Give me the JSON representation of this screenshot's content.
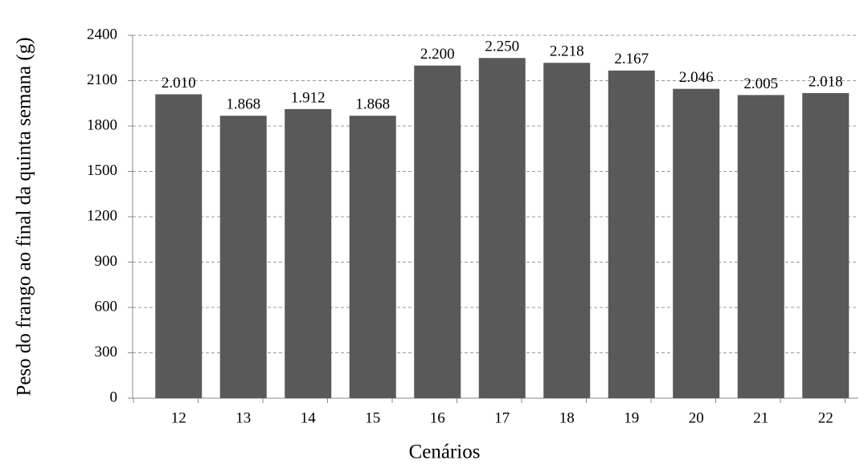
{
  "chart_data": {
    "type": "bar",
    "xlabel": "Cenários",
    "ylabel": "Peso do frango ao final da quinta semana (g)",
    "categories": [
      "12",
      "13",
      "14",
      "15",
      "16",
      "17",
      "18",
      "19",
      "20",
      "21",
      "22"
    ],
    "values": [
      2010,
      1868,
      1912,
      1868,
      2200,
      2250,
      2218,
      2167,
      2046,
      2005,
      2018
    ],
    "value_labels": [
      "2.010",
      "1.868",
      "1.912",
      "1.868",
      "2.200",
      "2.250",
      "2.218",
      "2.167",
      "2.046",
      "2.005",
      "2.018"
    ],
    "color": "#595959",
    "ylim": [
      0,
      2400
    ],
    "yticks": [
      0,
      300,
      600,
      900,
      1200,
      1500,
      1800,
      2100,
      2400
    ],
    "grid": true
  }
}
